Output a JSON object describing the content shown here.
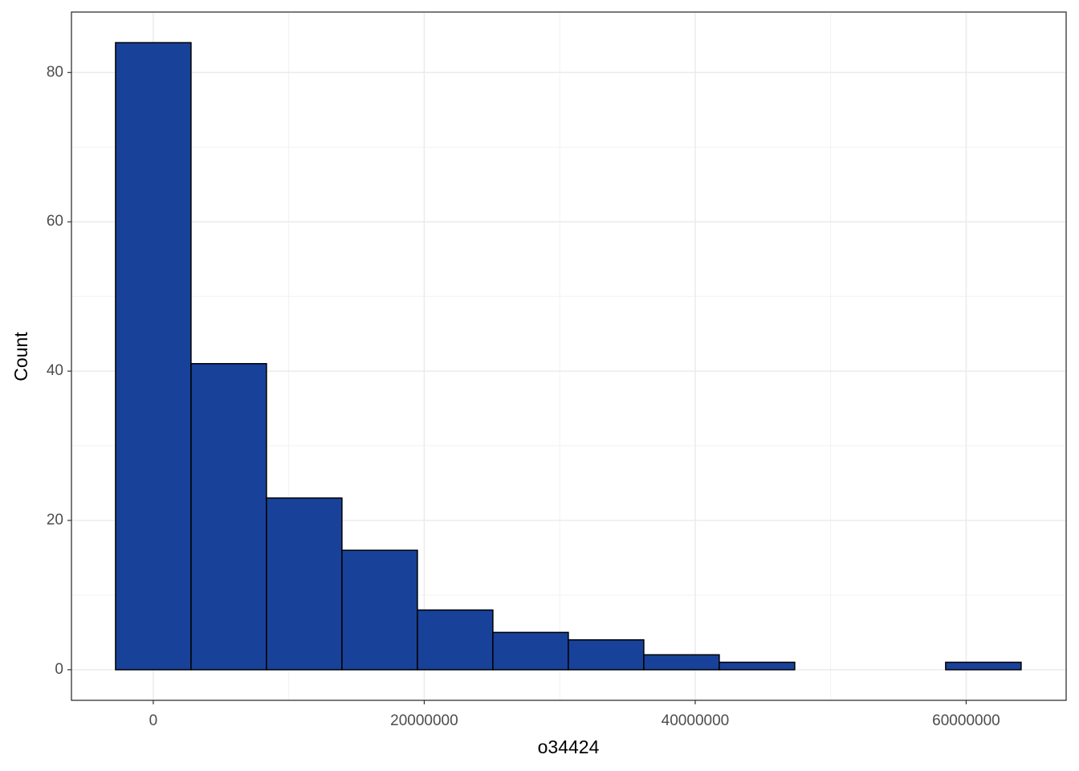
{
  "chart_data": {
    "type": "histogram",
    "x_label": "o34424",
    "y_label": "Count",
    "bins": [
      -2785000,
      2785000,
      8355000,
      13925000,
      19495000,
      25065000,
      30635000,
      36205000,
      41775000,
      47345000,
      52915000,
      58485000,
      64055000
    ],
    "values": [
      84,
      41,
      23,
      16,
      8,
      5,
      4,
      2,
      1,
      0,
      0,
      1
    ],
    "color": "#18419a",
    "xlim": [
      -6040000,
      67380000
    ],
    "ylim": [
      -4.1,
      88.1
    ],
    "xticks": [
      0,
      20000000,
      40000000,
      60000000
    ],
    "yticks": [
      0,
      20,
      40,
      60,
      80
    ],
    "x_minor_ticks": [
      10000000,
      30000000,
      50000000
    ],
    "y_minor_ticks": [
      10,
      30,
      50,
      70
    ],
    "grid": true
  }
}
